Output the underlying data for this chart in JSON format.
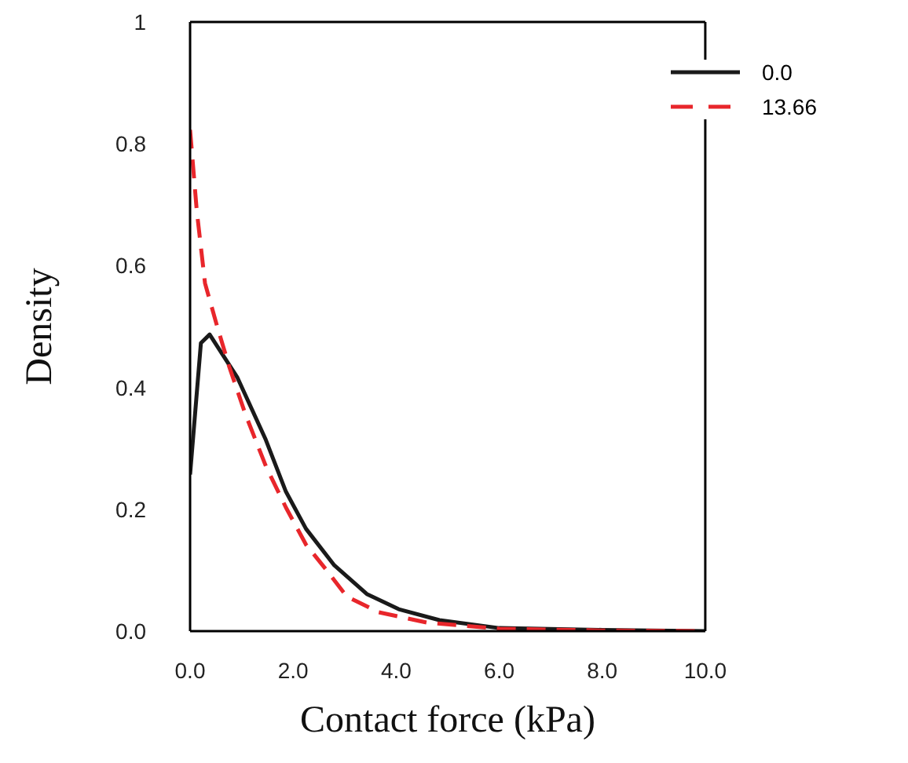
{
  "chart_data": {
    "type": "line",
    "xlabel": "Contact force (kPa)",
    "ylabel": "Density",
    "xlim": [
      0,
      10
    ],
    "ylim": [
      0,
      1
    ],
    "xticks": [
      {
        "value": 0,
        "label": "0.0"
      },
      {
        "value": 2,
        "label": "2.0"
      },
      {
        "value": 4,
        "label": "4.0"
      },
      {
        "value": 6,
        "label": "6.0"
      },
      {
        "value": 8,
        "label": "8.0"
      },
      {
        "value": 10,
        "label": "10.0"
      }
    ],
    "yticks": [
      {
        "value": 0,
        "label": "0.0"
      },
      0.2,
      0.4,
      0.6,
      0.8,
      1
    ],
    "grid": false,
    "legend": "top right",
    "marker": "none",
    "series": [
      {
        "name": "0.0",
        "color": "#1a1a1a",
        "line_style": "solid",
        "x": [
          0,
          0.21,
          0.38,
          0.92,
          1.47,
          1.86,
          2.25,
          2.8,
          3.43,
          4.05,
          4.84,
          6,
          8,
          10
        ],
        "values": [
          0.257,
          0.473,
          0.487,
          0.416,
          0.314,
          0.229,
          0.168,
          0.108,
          0.061,
          0.036,
          0.018,
          0.005,
          0.002,
          0
        ]
      },
      {
        "name": "13.66",
        "color": "#e8262b",
        "line_style": "dashed",
        "x": [
          0,
          0.13,
          0.29,
          0.52,
          0.76,
          1.07,
          1.47,
          1.86,
          2.25,
          2.65,
          3.04,
          3.66,
          4.6,
          6,
          8,
          10
        ],
        "values": [
          0.823,
          0.69,
          0.571,
          0.502,
          0.434,
          0.357,
          0.271,
          0.203,
          0.142,
          0.1,
          0.057,
          0.031,
          0.014,
          0.004,
          0.001,
          0
        ]
      }
    ]
  }
}
